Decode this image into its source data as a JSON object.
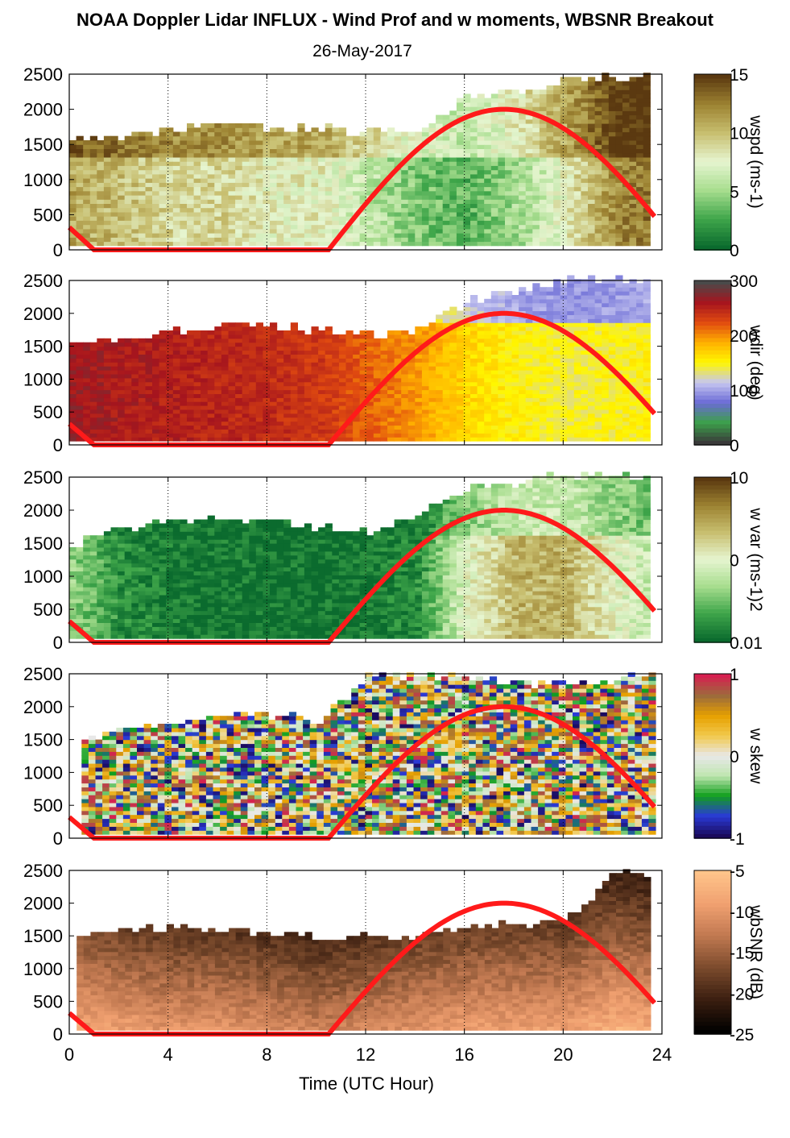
{
  "title": "NOAA Doppler Lidar INFLUX - Wind Prof and w moments, WBSNR Breakout",
  "subtitle": "26-May-2017",
  "chart_data": {
    "type": "heatmap",
    "xlabel": "Time (UTC Hour)",
    "x_ticks": [
      "0",
      "4",
      "8",
      "12",
      "16",
      "20",
      "24"
    ],
    "xlim": [
      0,
      24
    ],
    "ylim": [
      0,
      2500
    ],
    "y_ticks": [
      "0",
      "500",
      "1000",
      "1500",
      "2000",
      "2500"
    ],
    "vertical_gridlines_at_hours": [
      4,
      8,
      12,
      16,
      20,
      24
    ],
    "solar_elevation_curve": {
      "color": "#ff1a1a",
      "hours": [
        0,
        1,
        10.5,
        12,
        14,
        16,
        17.6,
        19,
        21,
        23.8
      ],
      "values": [
        320,
        0,
        0,
        550,
        1350,
        1850,
        2000,
        1900,
        1450,
        500
      ]
    },
    "panels": [
      {
        "id": "wspd",
        "colorbar_label": "wspd (ms-1)",
        "colorbar_ticks": [
          "15",
          "10",
          "5",
          "0"
        ],
        "cmap": [
          "#0b6b2e",
          "#3fa64a",
          "#a7dd8e",
          "#e6f5d0",
          "#c8bf70",
          "#9d8332",
          "#5b3910"
        ],
        "hours": [
          0,
          2,
          4,
          6,
          8,
          10,
          12,
          14,
          16,
          18,
          20,
          22,
          23.5
        ],
        "top_m": [
          1550,
          1550,
          1700,
          1750,
          1700,
          1700,
          1650,
          1650,
          2150,
          2200,
          2400,
          2450,
          2450
        ],
        "typical_value": [
          11,
          10,
          9,
          9,
          8,
          8,
          6,
          4,
          3,
          5,
          8,
          12,
          13
        ]
      },
      {
        "id": "wdir",
        "colorbar_label": "wdir (deg)",
        "colorbar_ticks": [
          "300",
          "200",
          "100",
          "0"
        ],
        "cmap": [
          "#3a3a3a",
          "#3ca04a",
          "#6b6bd6",
          "#c7c7f0",
          "#fff700",
          "#ffb000",
          "#e04a10",
          "#a5141e",
          "#4a4a4a"
        ],
        "hours": [
          0,
          2,
          4,
          6,
          8,
          10,
          12,
          14,
          16,
          18,
          20,
          22,
          23.5
        ],
        "top_m": [
          1550,
          1550,
          1700,
          1800,
          1800,
          1700,
          1650,
          1700,
          2150,
          2300,
          2500,
          2500,
          2500
        ],
        "typical_value": [
          320,
          310,
          305,
          300,
          295,
          285,
          260,
          235,
          200,
          180,
          170,
          175,
          180
        ]
      },
      {
        "id": "wvar",
        "colorbar_label": "w var (ms-1)2",
        "colorbar_ticks": [
          "10",
          "0",
          "0.01"
        ],
        "cmap": [
          "#0b6b2e",
          "#3fa64a",
          "#a7dd8e",
          "#e6f5d0",
          "#c8bf70",
          "#9d8332",
          "#5b3910"
        ],
        "hours": [
          0,
          2,
          4,
          6,
          8,
          10,
          12,
          14,
          16,
          18,
          20,
          22,
          23.5
        ],
        "top_m": [
          1450,
          1700,
          1800,
          1850,
          1800,
          1700,
          1650,
          1900,
          2300,
          2400,
          2500,
          2500,
          2500
        ],
        "typical_value": [
          3,
          1,
          0.5,
          0.3,
          0.2,
          0.2,
          0.3,
          1,
          5,
          7,
          7,
          5,
          4
        ]
      },
      {
        "id": "wskew",
        "colorbar_label": "w skew",
        "colorbar_ticks": [
          "1",
          "0",
          "-1"
        ],
        "cmap": [
          "#1a0a5c",
          "#2a3ad6",
          "#119f1e",
          "#bfe6b0",
          "#e8e8e8",
          "#f2c94c",
          "#e6a000",
          "#9b6b3c",
          "#d62050"
        ],
        "hours": [
          0.5,
          2,
          4,
          6,
          8,
          10,
          12,
          14,
          16,
          18,
          20,
          22,
          23.5
        ],
        "top_m": [
          1450,
          1650,
          1750,
          1850,
          1850,
          1750,
          2450,
          2450,
          2400,
          2350,
          2300,
          2400,
          2450
        ]
      },
      {
        "id": "wbsnr",
        "colorbar_label": "wbSNR (dB)",
        "colorbar_ticks": [
          "-5",
          "-10",
          "-15",
          "-20",
          "-25"
        ],
        "cmap": [
          "#000000",
          "#3a1e10",
          "#7a4a2c",
          "#c07850",
          "#f0a070",
          "#ffc48a"
        ],
        "hours": [
          0.3,
          2,
          4,
          6,
          8,
          10,
          12,
          14,
          16,
          18,
          20,
          22,
          23.5
        ],
        "top_m": [
          1450,
          1550,
          1600,
          1550,
          1500,
          1450,
          1450,
          1500,
          1600,
          1650,
          1700,
          2450,
          2400
        ],
        "typical_value": [
          -8,
          -9,
          -10,
          -10,
          -11,
          -12,
          -11,
          -10,
          -9,
          -9,
          -9,
          -7,
          -8
        ]
      }
    ]
  }
}
